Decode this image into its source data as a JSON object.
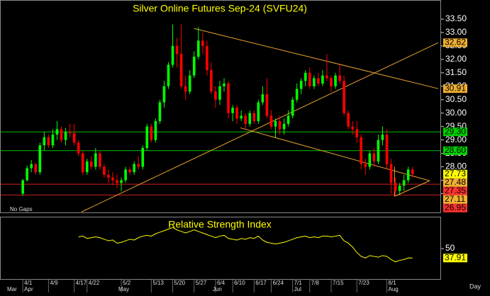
{
  "chart_data": [
    {
      "type": "candlestick",
      "title": "Silver Online Futures Sep-24 (SVFU24)",
      "note": "No Gaps",
      "period": "Day",
      "up_color": "#00ff00",
      "down_color": "#ff0000",
      "ohlc": [
        [
          27.0,
          27.55,
          26.92,
          27.5
        ],
        [
          27.5,
          28.05,
          27.45,
          27.95
        ],
        [
          27.95,
          28.25,
          27.8,
          28.1
        ],
        [
          28.1,
          28.15,
          27.7,
          27.8
        ],
        [
          27.8,
          28.9,
          27.7,
          28.8
        ],
        [
          28.8,
          29.3,
          28.6,
          29.1
        ],
        [
          29.1,
          29.2,
          28.7,
          28.8
        ],
        [
          28.8,
          29.4,
          28.7,
          29.2
        ],
        [
          29.2,
          29.7,
          29.0,
          29.4
        ],
        [
          29.4,
          29.5,
          28.9,
          29.0
        ],
        [
          29.0,
          29.45,
          28.8,
          29.3
        ],
        [
          29.3,
          29.6,
          29.1,
          29.25
        ],
        [
          29.25,
          29.6,
          28.8,
          28.9
        ],
        [
          28.9,
          29.0,
          28.4,
          28.5
        ],
        [
          28.5,
          28.6,
          27.7,
          27.8
        ],
        [
          27.8,
          28.3,
          27.7,
          28.2
        ],
        [
          28.2,
          28.4,
          27.9,
          28.0
        ],
        [
          28.0,
          28.7,
          27.9,
          28.5
        ],
        [
          28.5,
          28.6,
          27.9,
          28.0
        ],
        [
          28.0,
          28.1,
          27.6,
          27.7
        ],
        [
          27.7,
          27.9,
          27.4,
          27.6
        ],
        [
          27.6,
          27.8,
          27.3,
          27.5
        ],
        [
          27.5,
          27.7,
          27.2,
          27.4
        ],
        [
          27.4,
          27.6,
          27.1,
          27.5
        ],
        [
          27.5,
          28.0,
          27.4,
          27.9
        ],
        [
          27.9,
          28.0,
          27.7,
          27.8
        ],
        [
          27.8,
          28.2,
          27.7,
          28.1
        ],
        [
          28.1,
          28.4,
          27.9,
          28.0
        ],
        [
          28.0,
          28.8,
          27.9,
          28.7
        ],
        [
          28.7,
          29.6,
          28.6,
          29.5
        ],
        [
          29.5,
          29.6,
          28.9,
          29.0
        ],
        [
          29.0,
          29.8,
          28.9,
          29.7
        ],
        [
          29.7,
          30.5,
          29.6,
          30.4
        ],
        [
          30.4,
          31.2,
          30.2,
          31.0
        ],
        [
          31.0,
          31.9,
          30.9,
          31.8
        ],
        [
          31.8,
          33.3,
          31.7,
          32.5
        ],
        [
          32.5,
          32.8,
          31.7,
          32.2
        ],
        [
          32.2,
          33.3,
          30.9,
          31.0
        ],
        [
          31.0,
          31.4,
          30.5,
          30.8
        ],
        [
          30.8,
          31.6,
          30.7,
          31.4
        ],
        [
          31.4,
          32.3,
          31.3,
          32.1
        ],
        [
          32.1,
          33.2,
          32.0,
          32.7
        ],
        [
          32.7,
          33.0,
          32.2,
          32.5
        ],
        [
          32.5,
          32.7,
          31.4,
          31.6
        ],
        [
          31.6,
          31.9,
          30.7,
          30.8
        ],
        [
          30.8,
          31.0,
          30.2,
          30.5
        ],
        [
          30.5,
          31.2,
          30.3,
          31.0
        ],
        [
          31.0,
          31.3,
          30.8,
          31.1
        ],
        [
          31.1,
          31.2,
          29.8,
          30.0
        ],
        [
          30.0,
          30.3,
          29.7,
          30.2
        ],
        [
          30.2,
          30.3,
          29.6,
          29.8
        ],
        [
          29.8,
          30.1,
          29.7,
          29.9
        ],
        [
          29.9,
          30.0,
          29.4,
          29.6
        ],
        [
          29.6,
          30.1,
          29.5,
          30.0
        ],
        [
          30.0,
          30.1,
          29.6,
          29.7
        ],
        [
          29.7,
          30.5,
          29.6,
          30.4
        ],
        [
          30.4,
          31.0,
          30.3,
          30.7
        ],
        [
          30.7,
          31.3,
          29.8,
          29.9
        ],
        [
          29.9,
          30.1,
          29.4,
          29.5
        ],
        [
          29.5,
          29.8,
          29.1,
          29.7
        ],
        [
          29.7,
          29.9,
          29.2,
          29.4
        ],
        [
          29.4,
          29.8,
          29.2,
          29.6
        ],
        [
          29.6,
          30.1,
          29.5,
          29.9
        ],
        [
          29.9,
          30.6,
          29.8,
          30.5
        ],
        [
          30.5,
          31.1,
          30.4,
          30.9
        ],
        [
          30.9,
          31.3,
          30.7,
          31.2
        ],
        [
          31.2,
          31.6,
          31.0,
          31.5
        ],
        [
          31.5,
          31.7,
          30.9,
          31.0
        ],
        [
          31.0,
          31.4,
          30.9,
          31.3
        ],
        [
          31.3,
          31.5,
          31.0,
          31.1
        ],
        [
          31.1,
          31.6,
          31.0,
          31.4
        ],
        [
          31.4,
          32.2,
          31.2,
          31.3
        ],
        [
          31.3,
          31.4,
          30.8,
          31.0
        ],
        [
          31.0,
          31.5,
          30.9,
          31.4
        ],
        [
          31.4,
          31.8,
          31.1,
          31.2
        ],
        [
          31.2,
          31.4,
          29.9,
          30.0
        ],
        [
          30.0,
          30.1,
          29.4,
          29.5
        ],
        [
          29.5,
          29.7,
          29.2,
          29.4
        ],
        [
          29.4,
          29.7,
          28.9,
          29.1
        ],
        [
          29.1,
          29.2,
          27.9,
          28.1
        ],
        [
          28.1,
          28.3,
          27.7,
          28.0
        ],
        [
          28.0,
          28.6,
          27.9,
          28.5
        ],
        [
          28.5,
          28.7,
          28.0,
          28.2
        ],
        [
          28.2,
          29.2,
          28.1,
          29.0
        ],
        [
          29.0,
          29.5,
          28.8,
          29.2
        ],
        [
          29.2,
          29.4,
          27.9,
          28.1
        ],
        [
          28.1,
          28.3,
          27.0,
          27.4
        ],
        [
          27.4,
          27.6,
          26.9,
          27.1
        ],
        [
          27.1,
          27.4,
          26.95,
          27.3
        ],
        [
          27.3,
          27.7,
          27.1,
          27.5
        ],
        [
          27.5,
          28.0,
          27.4,
          27.9
        ],
        [
          27.9,
          28.0,
          27.6,
          27.73
        ]
      ],
      "xlim": [
        -4,
        97
      ],
      "xticks": [
        {
          "value": 0,
          "label": "4/1"
        },
        {
          "value": 6,
          "label": "4/9"
        },
        {
          "value": 12,
          "label": "4/17"
        },
        {
          "value": 15,
          "label": "4/22"
        },
        {
          "value": 23,
          "label": "5/2"
        },
        {
          "value": 30,
          "label": "5/13"
        },
        {
          "value": 35,
          "label": "5/20"
        },
        {
          "value": 40,
          "label": "5/27"
        },
        {
          "value": 45,
          "label": "6/4"
        },
        {
          "value": 49,
          "label": "6/10"
        },
        {
          "value": 54,
          "label": "6/17"
        },
        {
          "value": 58,
          "label": "6/24"
        },
        {
          "value": 63,
          "label": "7/1"
        },
        {
          "value": 67,
          "label": "7/8"
        },
        {
          "value": 72,
          "label": "7/15"
        },
        {
          "value": 78,
          "label": "7/23"
        },
        {
          "value": 85,
          "label": "8/1"
        }
      ],
      "month_ticks": [
        {
          "value": -4,
          "label": "Mar"
        },
        {
          "value": 0,
          "label": "Apr"
        },
        {
          "value": 22,
          "label": "May"
        },
        {
          "value": 44,
          "label": "Jun"
        },
        {
          "value": 63,
          "label": "Jul"
        },
        {
          "value": 85,
          "label": "Aug"
        }
      ],
      "ylim": [
        26.3,
        34.08
      ],
      "yticks": [
        {
          "value": 33.5,
          "label": "33.50"
        },
        {
          "value": 33,
          "label": "33.00"
        },
        {
          "value": 32.5,
          "label": "32.50"
        },
        {
          "value": 32,
          "label": "32.00"
        },
        {
          "value": 31.5,
          "label": "31.50"
        },
        {
          "value": 31,
          "label": "31.00"
        },
        {
          "value": 30.5,
          "label": "30.50"
        },
        {
          "value": 30,
          "label": "30.00"
        },
        {
          "value": 29.5,
          "label": "29.50"
        },
        {
          "value": 29,
          "label": "29.00"
        },
        {
          "value": 28.5,
          "label": "28.50"
        },
        {
          "value": 28,
          "label": "28.00"
        },
        {
          "value": 27.5,
          "label": "27.50"
        },
        {
          "value": 27,
          "label": "27.00"
        }
      ],
      "hlines": [
        {
          "value": 29.3,
          "color": "#00c000"
        },
        {
          "value": 28.6,
          "color": "#00c000"
        },
        {
          "value": 27.35,
          "color": "#d02020"
        },
        {
          "value": 26.95,
          "color": "#d02020"
        }
      ],
      "trendlines": [
        {
          "x": [
            40,
            97
          ],
          "y": [
            33.15,
            30.91
          ],
          "color": "#e8a030"
        },
        {
          "x": [
            13.7,
            97
          ],
          "y": [
            26.32,
            32.62
          ],
          "color": "#e8a030"
        },
        {
          "x": [
            50.8,
            95
          ],
          "y": [
            29.45,
            27.48
          ],
          "color": "#e8a030"
        },
        {
          "x": [
            86.8,
            86.8
          ],
          "y": [
            28.0,
            26.9
          ],
          "color": "#e8a030"
        },
        {
          "x": [
            86.8,
            95
          ],
          "y": [
            26.9,
            27.48
          ],
          "color": "#e8a030"
        }
      ],
      "price_tags": [
        {
          "value": 32.62,
          "label": "32.62",
          "color": "#f0b030"
        },
        {
          "value": 30.91,
          "label": "30.91",
          "color": "#f0b030"
        },
        {
          "value": 29.3,
          "label": "29.30",
          "color": "#00d000"
        },
        {
          "value": 28.6,
          "label": "28.60",
          "color": "#00d000"
        },
        {
          "value": 27.73,
          "label": "27.73",
          "color": "#ffff00"
        },
        {
          "value": 27.48,
          "label": "27.48",
          "color": "#f0b030"
        },
        {
          "value": 27.35,
          "label": "27.35",
          "color": "#ff3030"
        },
        {
          "value": 27.11,
          "label": "27.11",
          "color": "#f0b030"
        },
        {
          "value": 26.95,
          "label": "26.95",
          "color": "#ff3030"
        }
      ]
    },
    {
      "type": "line",
      "title": "Relative Strength Index",
      "color": "#ffff00",
      "values": [
        null,
        null,
        null,
        null,
        null,
        null,
        null,
        null,
        null,
        null,
        null,
        null,
        null,
        65,
        66,
        63,
        64,
        65,
        64,
        62,
        60,
        61,
        57,
        58,
        60,
        62,
        61,
        64,
        66,
        67,
        66,
        69,
        71,
        73,
        75,
        77,
        74,
        72,
        70,
        72,
        74,
        72,
        70,
        68,
        66,
        64,
        66,
        67,
        63,
        62,
        61,
        63,
        62,
        64,
        63,
        66,
        61,
        58,
        57,
        56,
        57,
        58,
        60,
        62,
        64,
        65,
        66,
        64,
        65,
        64,
        66,
        66,
        65,
        66,
        67,
        60,
        57,
        52,
        45,
        40,
        38,
        41,
        40,
        39,
        41,
        40,
        36,
        33,
        35,
        36,
        38,
        37.91
      ],
      "ylim": [
        11,
        90
      ],
      "yticks": [
        50
      ],
      "price_tag": {
        "value": 37.91,
        "label": "37.91",
        "color": "#ffff00"
      }
    }
  ]
}
